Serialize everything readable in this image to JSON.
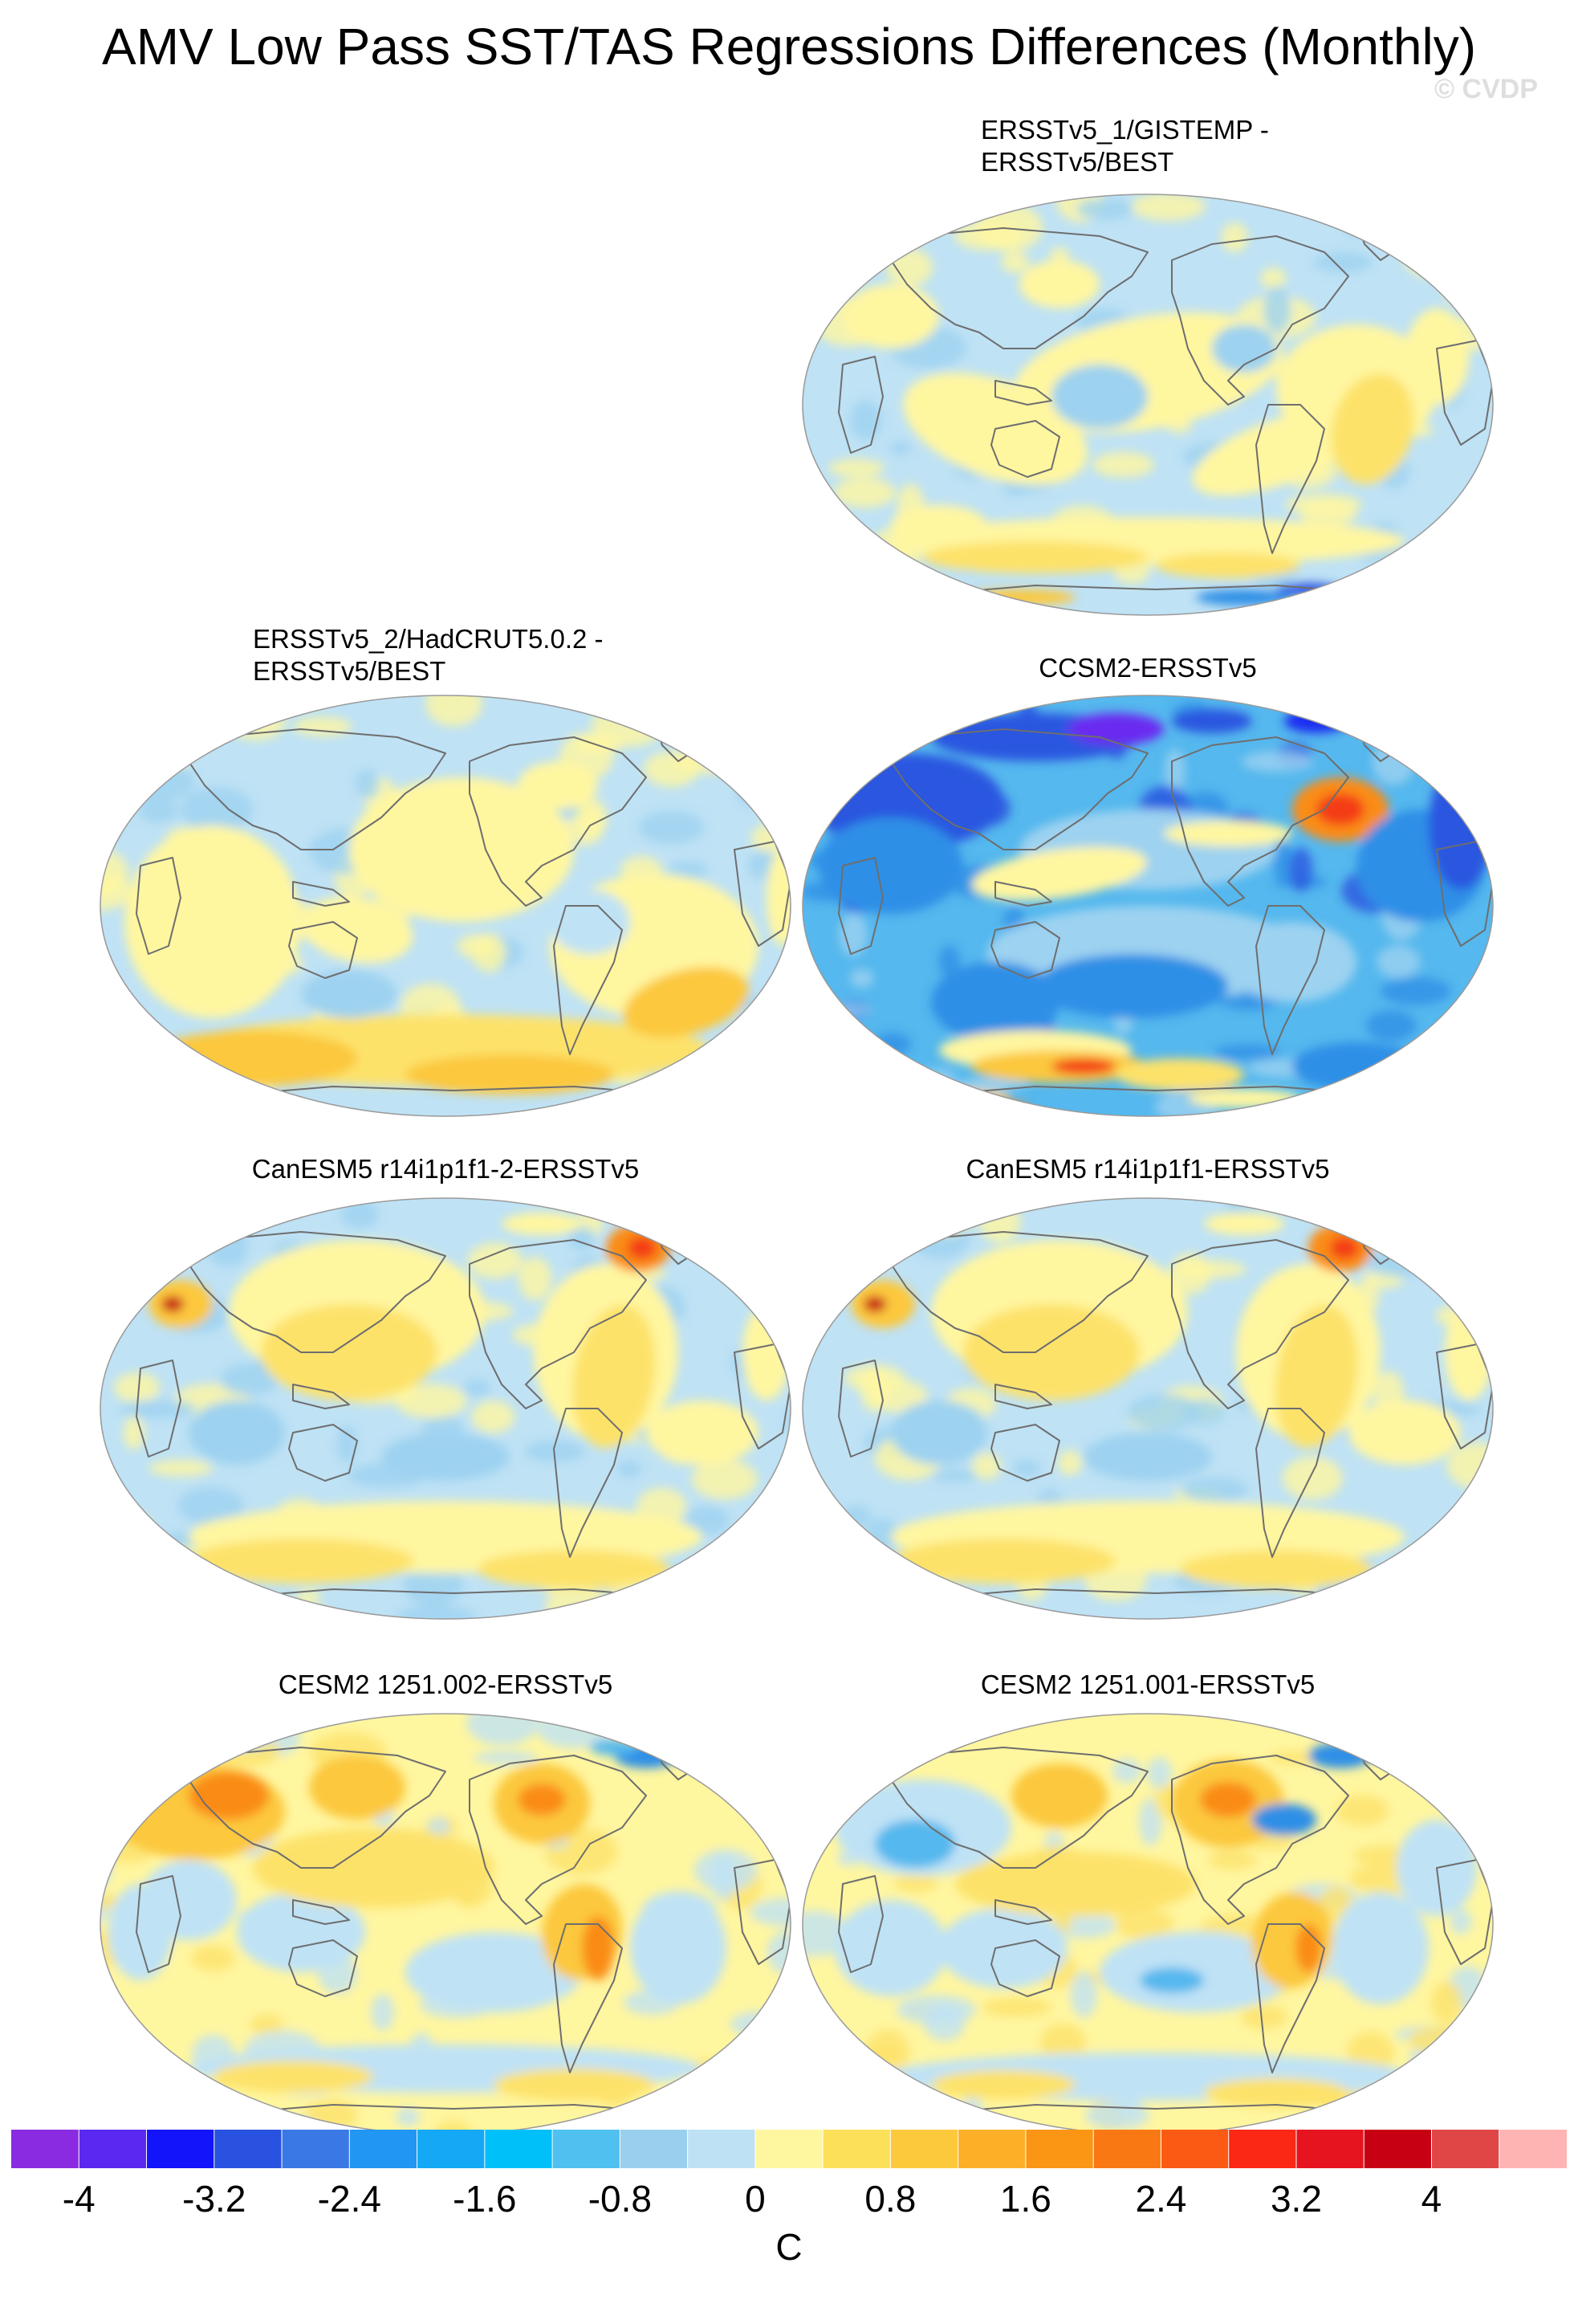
{
  "title": "AMV Low Pass SST/TAS Regressions Differences (Monthly)",
  "watermark": "© CVDP",
  "panels": [
    {
      "id": "p1",
      "title_lines": [
        "ERSSTv5_1/GISTEMP -",
        "ERSSTv5/BEST"
      ],
      "scheme": "mild_cool"
    },
    {
      "id": "p2",
      "title_lines": [
        "ERSSTv5_2/HadCRUT5.0.2 -",
        "ERSSTv5/BEST"
      ],
      "scheme": "mild_warm"
    },
    {
      "id": "p3",
      "title_lines": [
        "CCSM2-ERSSTv5"
      ],
      "scheme": "strong_cool"
    },
    {
      "id": "p4",
      "title_lines": [
        "CanESM5 r14i1p1f1-2-ERSSTv5"
      ],
      "scheme": "canesm"
    },
    {
      "id": "p5",
      "title_lines": [
        "CanESM5 r14i1p1f1-ERSSTv5"
      ],
      "scheme": "canesm"
    },
    {
      "id": "p6",
      "title_lines": [
        "CESM2 1251.002-ERSSTv5"
      ],
      "scheme": "cesm_warm"
    },
    {
      "id": "p7",
      "title_lines": [
        "CESM2 1251.001-ERSSTv5"
      ],
      "scheme": "cesm_mixed"
    }
  ],
  "colorbar": {
    "units": "C",
    "tick_labels": [
      "-4",
      "-3.2",
      "-2.4",
      "-1.6",
      "-0.8",
      "0",
      "0.8",
      "1.6",
      "2.4",
      "3.2",
      "4"
    ],
    "colors": [
      "#8a2be2",
      "#5a28f0",
      "#1414fa",
      "#2a52e0",
      "#3a78e6",
      "#2196f3",
      "#14a8f5",
      "#00c0fa",
      "#50c0f0",
      "#9ad0ee",
      "#bee2f4",
      "#fff6a0",
      "#fce05a",
      "#fcc83c",
      "#fcb028",
      "#fb9614",
      "#fa7814",
      "#fa5a14",
      "#fa2814",
      "#e6141e",
      "#c80014",
      "#e04646",
      "#ffb4b4"
    ]
  }
}
